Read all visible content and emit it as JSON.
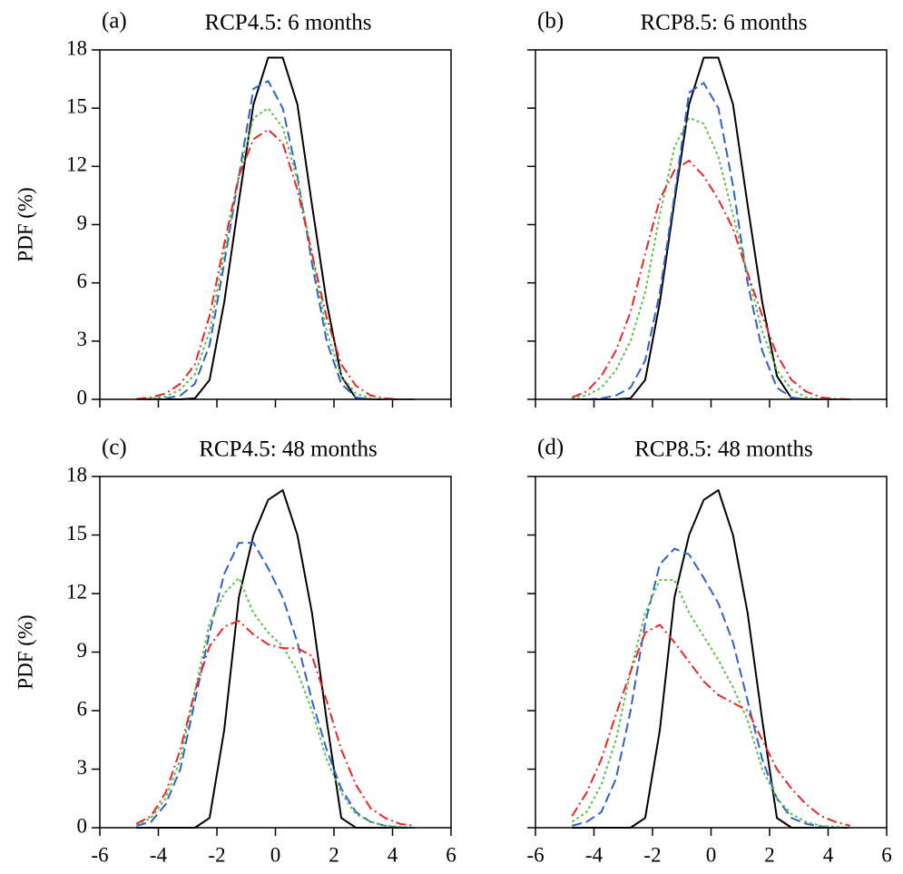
{
  "chart_data": [
    {
      "type": "line",
      "panel_label": "(a)",
      "title": "RCP4.5: 6 months",
      "y_label": "PDF (%)",
      "x": [
        -4.75,
        -4.25,
        -3.75,
        -3.25,
        -2.75,
        -2.25,
        -1.75,
        -1.25,
        -0.75,
        -0.25,
        0.25,
        0.75,
        1.25,
        1.75,
        2.25,
        2.75,
        3.25,
        3.75,
        4.25,
        4.75
      ],
      "series": [
        {
          "color": "#000000",
          "dash": "solid",
          "values": [
            0,
            0,
            0,
            0,
            0.05,
            1,
            5,
            10.2,
            15.2,
            17.6,
            17.6,
            15.2,
            10,
            5,
            1.2,
            0.05,
            0,
            0,
            0,
            0
          ]
        },
        {
          "color": "#2f62c8",
          "dash": "dashed",
          "values": [
            0,
            0,
            0.05,
            0.2,
            0.8,
            2.8,
            7,
            11.5,
            16,
            16.4,
            15,
            11.5,
            7,
            3,
            0.8,
            0.1,
            0,
            0,
            0,
            0
          ]
        },
        {
          "color": "#5cc04a",
          "dash": "dotted",
          "values": [
            0,
            0.05,
            0.15,
            0.5,
            1.3,
            3.5,
            7.5,
            11.5,
            14.5,
            15,
            14,
            11.3,
            7.5,
            3.5,
            1.2,
            0.3,
            0.05,
            0,
            0,
            0
          ]
        },
        {
          "color": "#e8262a",
          "dash": "dashdot",
          "values": [
            0.02,
            0.1,
            0.3,
            0.8,
            1.8,
            4.3,
            8,
            11.5,
            13.4,
            13.9,
            13.2,
            10.8,
            7.5,
            4.2,
            1.8,
            0.7,
            0.2,
            0.05,
            0,
            0
          ]
        }
      ],
      "xlim": [
        -6,
        6
      ],
      "xticks": [
        -6,
        -4,
        -2,
        0,
        2,
        4,
        6
      ],
      "ylim": [
        0,
        18
      ],
      "yticks": [
        0,
        3,
        6,
        9,
        12,
        15,
        18
      ],
      "show_xtick_labels": false,
      "show_ytick_labels": true
    },
    {
      "type": "line",
      "panel_label": "(b)",
      "title": "RCP8.5: 6 months",
      "x": [
        -4.75,
        -4.25,
        -3.75,
        -3.25,
        -2.75,
        -2.25,
        -1.75,
        -1.25,
        -0.75,
        -0.25,
        0.25,
        0.75,
        1.25,
        1.75,
        2.25,
        2.75,
        3.25,
        3.75,
        4.25,
        4.75
      ],
      "series": [
        {
          "color": "#000000",
          "dash": "solid",
          "values": [
            0,
            0,
            0,
            0,
            0.05,
            1,
            5,
            10.2,
            15.2,
            17.6,
            17.6,
            15.2,
            10,
            5,
            1.2,
            0.05,
            0,
            0,
            0,
            0
          ]
        },
        {
          "color": "#2f62c8",
          "dash": "dashed",
          "values": [
            0,
            0,
            0.05,
            0.2,
            0.6,
            2,
            5.5,
            10.5,
            15.8,
            16.3,
            15,
            11,
            6,
            2.5,
            0.6,
            0.1,
            0,
            0,
            0,
            0
          ]
        },
        {
          "color": "#5cc04a",
          "dash": "dotted",
          "values": [
            0.05,
            0.2,
            0.6,
            1.5,
            3,
            5.5,
            9.5,
            13,
            14.5,
            14.2,
            12.5,
            9.5,
            6.5,
            3.5,
            1.5,
            0.5,
            0.1,
            0,
            0,
            0
          ]
        },
        {
          "color": "#e8262a",
          "dash": "dashdot",
          "values": [
            0.1,
            0.4,
            1.2,
            2.5,
            4.5,
            7.5,
            10.3,
            11.8,
            12.3,
            11.5,
            10.3,
            8.8,
            6.5,
            4.3,
            2.3,
            1,
            0.4,
            0.1,
            0.03,
            0
          ]
        }
      ],
      "xlim": [
        -6,
        6
      ],
      "xticks": [
        -6,
        -4,
        -2,
        0,
        2,
        4,
        6
      ],
      "ylim": [
        0,
        18
      ],
      "yticks": [
        0,
        3,
        6,
        9,
        12,
        15,
        18
      ],
      "show_xtick_labels": false,
      "show_ytick_labels": false
    },
    {
      "type": "line",
      "panel_label": "(c)",
      "title": "RCP4.5: 48 months",
      "y_label": "PDF (%)",
      "x": [
        -4.75,
        -4.25,
        -3.75,
        -3.25,
        -2.75,
        -2.25,
        -1.75,
        -1.25,
        -0.75,
        -0.25,
        0.25,
        0.75,
        1.25,
        1.75,
        2.25,
        2.75,
        3.25,
        3.75,
        4.25,
        4.75
      ],
      "series": [
        {
          "color": "#000000",
          "dash": "solid",
          "values": [
            0,
            0,
            0,
            0,
            0,
            0.5,
            5,
            11.8,
            15,
            16.8,
            17.3,
            15,
            11,
            5.5,
            0.5,
            0,
            0,
            0,
            0,
            0
          ]
        },
        {
          "color": "#2f62c8",
          "dash": "dashed",
          "values": [
            0.1,
            0.3,
            1.2,
            3,
            6.5,
            10,
            13,
            14.6,
            14.6,
            13.3,
            11.8,
            9.5,
            6.5,
            4,
            2,
            0.8,
            0.3,
            0.1,
            0,
            0
          ]
        },
        {
          "color": "#5cc04a",
          "dash": "dotted",
          "values": [
            0.15,
            0.5,
            1.5,
            3.5,
            7,
            10.5,
            12,
            12.8,
            11,
            10,
            9.3,
            8,
            6,
            3.5,
            1.8,
            0.7,
            0.3,
            0.1,
            0.05,
            0
          ]
        },
        {
          "color": "#e8262a",
          "dash": "dashdot",
          "values": [
            0.2,
            0.6,
            1.8,
            4,
            7,
            9.3,
            10.3,
            10.6,
            9.9,
            9.4,
            9.2,
            9.2,
            8.8,
            6.5,
            4,
            2.2,
            1,
            0.5,
            0.2,
            0.1
          ]
        }
      ],
      "xlim": [
        -6,
        6
      ],
      "xticks": [
        -6,
        -4,
        -2,
        0,
        2,
        4,
        6
      ],
      "ylim": [
        0,
        18
      ],
      "yticks": [
        0,
        3,
        6,
        9,
        12,
        15,
        18
      ],
      "show_xtick_labels": true,
      "show_ytick_labels": true
    },
    {
      "type": "line",
      "panel_label": "(d)",
      "title": "RCP8.5: 48 months",
      "x": [
        -4.75,
        -4.25,
        -3.75,
        -3.25,
        -2.75,
        -2.25,
        -1.75,
        -1.25,
        -0.75,
        -0.25,
        0.25,
        0.75,
        1.25,
        1.75,
        2.25,
        2.75,
        3.25,
        3.75,
        4.25,
        4.75
      ],
      "series": [
        {
          "color": "#000000",
          "dash": "solid",
          "values": [
            0,
            0,
            0,
            0,
            0,
            0.5,
            5,
            11.8,
            15,
            16.8,
            17.3,
            15,
            11,
            5.5,
            0.5,
            0,
            0,
            0,
            0,
            0
          ]
        },
        {
          "color": "#2f62c8",
          "dash": "dashed",
          "values": [
            0.1,
            0.3,
            0.8,
            2.5,
            6,
            10.5,
            13.5,
            14.3,
            14,
            12.8,
            11.5,
            9.5,
            6.5,
            3.5,
            1.5,
            0.5,
            0.2,
            0.05,
            0,
            0
          ]
        },
        {
          "color": "#5cc04a",
          "dash": "dotted",
          "values": [
            0.3,
            0.8,
            2.2,
            4.5,
            8,
            11,
            12.7,
            12.7,
            11,
            9.8,
            8.6,
            7.2,
            5.5,
            3,
            1.5,
            0.7,
            0.3,
            0.1,
            0.05,
            0
          ]
        },
        {
          "color": "#e8262a",
          "dash": "dashdot",
          "values": [
            0.6,
            1.8,
            3.5,
            5.8,
            8,
            10,
            10.4,
            9.5,
            8.5,
            7.5,
            6.8,
            6.4,
            6,
            4.5,
            3,
            2,
            1.2,
            0.6,
            0.3,
            0.1
          ]
        }
      ],
      "xlim": [
        -6,
        6
      ],
      "xticks": [
        -6,
        -4,
        -2,
        0,
        2,
        4,
        6
      ],
      "ylim": [
        0,
        18
      ],
      "yticks": [
        0,
        3,
        6,
        9,
        12,
        15,
        18
      ],
      "show_xtick_labels": true,
      "show_ytick_labels": false
    }
  ]
}
